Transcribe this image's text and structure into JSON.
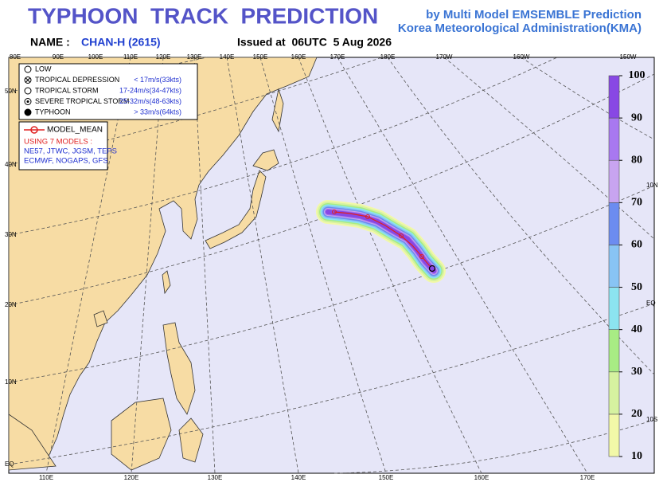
{
  "header": {
    "title": "TYPHOON  TRACK  PREDICTION",
    "subtitle": [
      "by Multi Model EMSEMBLE Prediction",
      "Korea Meteorological Administration(KMA)"
    ],
    "name_label": "NAME :",
    "name": "CHAN-H (2615)",
    "issued": "Issued at  06UTC  5 Aug 2026"
  },
  "legend": {
    "items": [
      {
        "label": "LOW"
      },
      {
        "label": "TROPICAL DEPRESSION",
        "range": "< 17m/s(33kts)"
      },
      {
        "label": "TROPICAL STORM",
        "range": "17-24m/s(34-47kts)"
      },
      {
        "label": "SEVERE TROPICAL STORM",
        "range": "25-32m/s(48-63kts)"
      },
      {
        "label": "TYPHOON",
        "range": "> 33m/s(64kts)"
      }
    ]
  },
  "models": {
    "mean": "MODEL_MEAN",
    "title": "USING 7 MODELS :",
    "lines": [
      "NE57, JTWC, JGSM, TEPS",
      "ECMWF, NOGAPS, GFS"
    ]
  },
  "map": {
    "top_lon_labels": [
      "80E",
      "90E",
      "100E",
      "110E",
      "120E",
      "130E",
      "140E",
      "150E",
      "160E",
      "170E",
      "180E",
      "170W",
      "160W",
      "150W"
    ],
    "bottom_lon_labels": [
      "110E",
      "120E",
      "130E",
      "140E",
      "150E",
      "160E",
      "170E"
    ],
    "left_lat_labels": [
      "50N",
      "40N",
      "30N",
      "20N",
      "10N",
      "EQ"
    ],
    "right_lat_labels": [
      "10N",
      "EQ",
      "10S"
    ]
  },
  "colorbar": {
    "range": [
      10,
      100
    ],
    "ticks": [
      10,
      20,
      30,
      40,
      50,
      60,
      70,
      80,
      90,
      100
    ],
    "colors": [
      "#f2f8a8",
      "#d6f2a0",
      "#a8ec84",
      "#8ce4f0",
      "#88c4f4",
      "#6c8cf0",
      "#c8a4f0",
      "#a878f0",
      "#8848e4"
    ]
  }
}
